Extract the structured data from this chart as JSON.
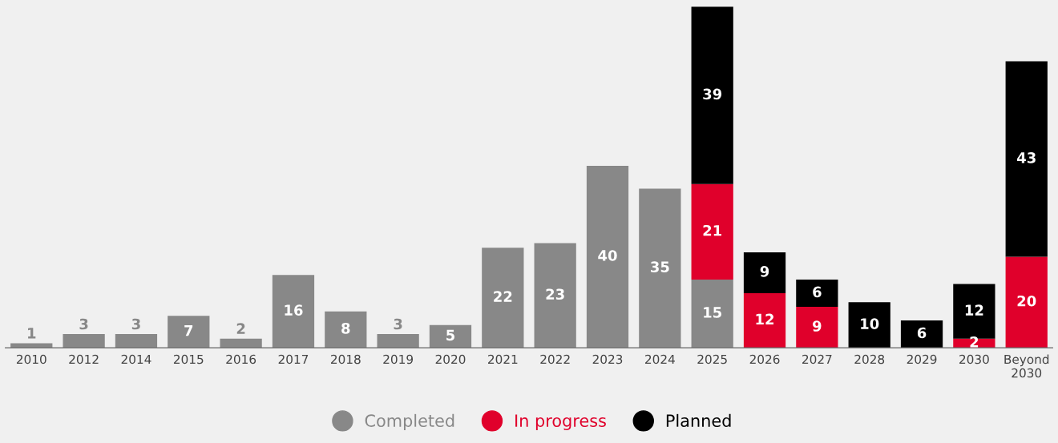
{
  "chart_data": {
    "type": "bar",
    "stacked": true,
    "data_labels": true,
    "legend": "bottom",
    "grid": false,
    "categories": [
      "2010",
      "2012",
      "2014",
      "2015",
      "2016",
      "2017",
      "2018",
      "2019",
      "2020",
      "2021",
      "2022",
      "2023",
      "2024",
      "2025",
      "2026",
      "2027",
      "2028",
      "2029",
      "2030",
      "Beyond\n2030"
    ],
    "series": [
      {
        "name": "Completed",
        "color": "#888888",
        "values": [
          1,
          3,
          3,
          7,
          2,
          16,
          8,
          3,
          5,
          22,
          23,
          40,
          35,
          15,
          null,
          null,
          null,
          null,
          null,
          null
        ]
      },
      {
        "name": "In progress",
        "color": "#e0002b",
        "values": [
          null,
          null,
          null,
          null,
          null,
          null,
          null,
          null,
          null,
          null,
          null,
          null,
          null,
          21,
          12,
          9,
          null,
          null,
          2,
          20
        ]
      },
      {
        "name": "Planned",
        "color": "#000000",
        "values": [
          null,
          null,
          null,
          null,
          null,
          null,
          null,
          null,
          null,
          null,
          null,
          null,
          null,
          39,
          9,
          6,
          10,
          6,
          12,
          43
        ]
      }
    ]
  }
}
